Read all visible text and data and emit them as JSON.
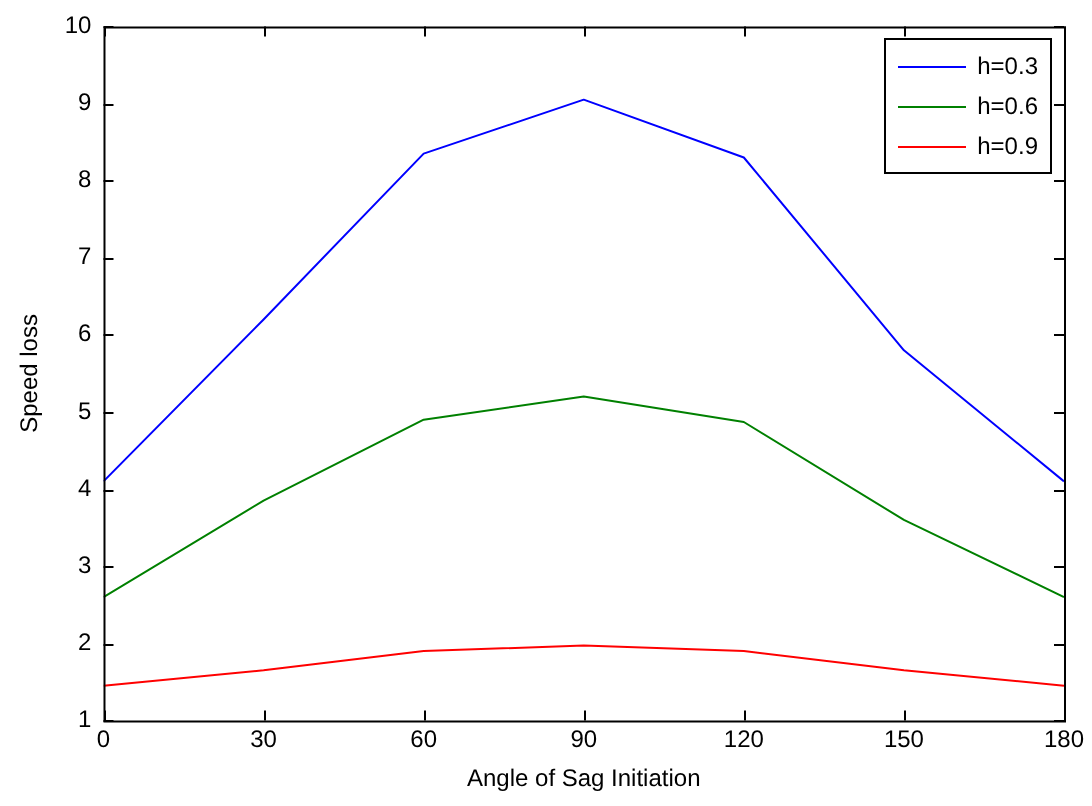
{
  "chart_data": {
    "type": "line",
    "xlabel": "Angle of Sag Initiation",
    "ylabel": "Speed loss",
    "x": [
      0,
      30,
      60,
      90,
      120,
      150,
      180
    ],
    "series": [
      {
        "name": "h=0.3",
        "color": "#0000ff",
        "values": [
          4.1,
          6.2,
          8.35,
          9.05,
          8.3,
          5.8,
          4.1
        ]
      },
      {
        "name": "h=0.6",
        "color": "#008000",
        "values": [
          2.6,
          3.85,
          4.9,
          5.2,
          4.87,
          3.6,
          2.6
        ]
      },
      {
        "name": "h=0.9",
        "color": "#ff0000",
        "values": [
          1.45,
          1.65,
          1.9,
          1.97,
          1.9,
          1.65,
          1.45
        ]
      }
    ],
    "xlim": [
      0,
      180
    ],
    "xticks": [
      0,
      30,
      60,
      90,
      120,
      150,
      180
    ],
    "ylim": [
      1,
      10
    ],
    "yticks": [
      1,
      2,
      3,
      4,
      5,
      6,
      7,
      8,
      9,
      10
    ],
    "grid": false,
    "legend": "top right",
    "marker": "none",
    "line_style": "solid"
  }
}
